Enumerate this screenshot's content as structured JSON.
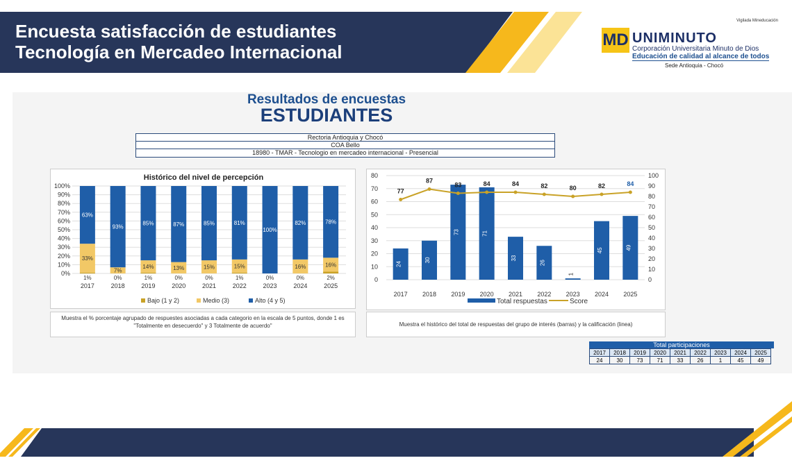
{
  "header": {
    "title_line1": "Encuesta satisfacción de estudiantes",
    "title_line2": "Tecnología en Mercadeo Internacional"
  },
  "logo": {
    "vigilada": "Vigilada Mineducación",
    "name": "UNIMINUTO",
    "line1": "Corporación Universitaria Minuto de Dios",
    "line2": "Educación de calidad al alcance de todos",
    "sede": "Sede Antioquia - Chocó"
  },
  "report": {
    "title1": "Resultados de encuestas",
    "title2": "ESTUDIANTES",
    "info": [
      "Rectoria Antioquia y Chocó",
      "COA Bello",
      "18980 - TMAR - Tecnologio en mercadeo internacional - Presencial"
    ]
  },
  "colors": {
    "navy": "#27365a",
    "yellow": "#f6b81c",
    "bajo": "#c9a227",
    "medio": "#f2c866",
    "alto": "#1f5ea8",
    "score": "#c9a227"
  },
  "chart_data": [
    {
      "type": "bar",
      "stacked": true,
      "title": "Histórico del nivel de percepción",
      "categories": [
        "2017",
        "2018",
        "2019",
        "2020",
        "2021",
        "2022",
        "2023",
        "2024",
        "2025"
      ],
      "yticks": [
        "0%",
        "10%",
        "20%",
        "30%",
        "40%",
        "50%",
        "60%",
        "70%",
        "80%",
        "90%",
        "100%"
      ],
      "ylim": [
        0,
        100
      ],
      "grid": true,
      "legend": "bottom",
      "series": [
        {
          "name": "Bajo (1 y 2)",
          "values": [
            1,
            0,
            1,
            0,
            0,
            1,
            0,
            0,
            2
          ]
        },
        {
          "name": "Medio (3)",
          "values": [
            33,
            7,
            14,
            13,
            15,
            15,
            0,
            16,
            16
          ]
        },
        {
          "name": "Alto (4 y 5)",
          "values": [
            63,
            93,
            85,
            87,
            85,
            81,
            100,
            82,
            78
          ]
        }
      ],
      "caption": "Muestra el % porcentaje agrupado de respuestes asociadas a cada categorio en la escala de 5 puntos, donde 1 es \"Totalmente en desecuerdo\" y 3 Totalmente de acuerdo\""
    },
    {
      "type": "bar+line",
      "categories": [
        "2017",
        "2018",
        "2019",
        "2020",
        "2021",
        "2022",
        "2023",
        "2024",
        "2025"
      ],
      "ylim": [
        0,
        80
      ],
      "y2lim": [
        0,
        100
      ],
      "yticks": [
        "0",
        "10",
        "20",
        "30",
        "40",
        "50",
        "60",
        "70",
        "80"
      ],
      "y2ticks": [
        "0",
        "10",
        "20",
        "30",
        "40",
        "50",
        "60",
        "70",
        "80",
        "90",
        "100"
      ],
      "grid": true,
      "legend": "bottom",
      "series": [
        {
          "name": "Total respuestas",
          "type": "bar",
          "values": [
            24,
            30,
            73,
            71,
            33,
            26,
            1,
            45,
            49
          ]
        },
        {
          "name": "Score",
          "type": "line",
          "axis": "right",
          "values": [
            77,
            87,
            83,
            84,
            84,
            82,
            80,
            82,
            84
          ]
        }
      ],
      "caption": "Muestra el histórico del total de respuestas del grupo de interés (barras) y la calificación (linea)"
    }
  ],
  "table": {
    "title": "Total participaciones",
    "years": [
      "2017",
      "2018",
      "2019",
      "2020",
      "2021",
      "2022",
      "2023",
      "2024",
      "2025"
    ],
    "values": [
      "24",
      "30",
      "73",
      "71",
      "33",
      "26",
      "1",
      "45",
      "49"
    ]
  }
}
